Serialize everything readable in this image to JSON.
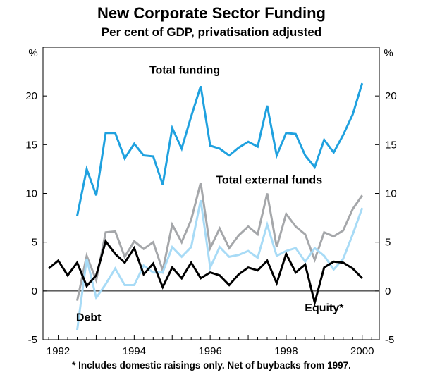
{
  "title": "New Corporate Sector Funding",
  "subtitle": "Per cent of GDP, privatisation adjusted",
  "footnote": "* Includes domestic raisings only. Net of buybacks from 1997.",
  "chart_data": {
    "type": "line",
    "title": "New Corporate Sector Funding",
    "subtitle": "Per cent of GDP, privatisation adjusted",
    "ylabel_left": "%",
    "ylabel_right": "%",
    "ylim": [
      -5,
      25
    ],
    "yticks": [
      -5,
      0,
      5,
      10,
      15,
      20
    ],
    "xlim": [
      1991.6,
      2000.45
    ],
    "xticks": [
      1992,
      1994,
      1996,
      1998,
      2000
    ],
    "xtick_labels": [
      "1992",
      "1994",
      "1996",
      "1998",
      "2000"
    ],
    "grid": false,
    "series": [
      {
        "name": "Total funding",
        "color": "#1fa1df",
        "width": 3,
        "x": [
          1992.5,
          1992.75,
          1993.0,
          1993.25,
          1993.5,
          1993.75,
          1994.0,
          1994.25,
          1994.5,
          1994.75,
          1995.0,
          1995.25,
          1995.5,
          1995.75,
          1996.0,
          1996.25,
          1996.5,
          1996.75,
          1997.0,
          1997.25,
          1997.5,
          1997.75,
          1998.0,
          1998.25,
          1998.5,
          1998.75,
          1999.0,
          1999.25,
          1999.5,
          1999.75,
          2000.0,
          2000.25
        ],
        "values": [
          7.7,
          12.5,
          9.8,
          16.2,
          16.2,
          13.6,
          15.1,
          13.9,
          13.8,
          10.9,
          16.7,
          14.6,
          17.9,
          21.0,
          14.9,
          14.6,
          13.9,
          14.7,
          15.3,
          14.8,
          19.0,
          13.9,
          16.2,
          16.1,
          13.9,
          12.7,
          15.5,
          14.2,
          16.0,
          18.1,
          21.3,
          null
        ]
      },
      {
        "name": "Total external funds",
        "color": "#a5a7aa",
        "width": 3,
        "x": [
          1992.5,
          1992.75,
          1993.0,
          1993.25,
          1993.5,
          1993.75,
          1994.0,
          1994.25,
          1994.5,
          1994.75,
          1995.0,
          1995.25,
          1995.5,
          1995.75,
          1996.0,
          1996.25,
          1996.5,
          1996.75,
          1997.0,
          1997.25,
          1997.5,
          1997.75,
          1998.0,
          1998.25,
          1998.5,
          1998.75,
          1999.0,
          1999.25,
          1999.5,
          1999.75,
          2000.0
        ],
        "values": [
          -1.0,
          3.6,
          1.1,
          6.0,
          6.1,
          3.5,
          5.1,
          4.3,
          5.0,
          2.1,
          6.8,
          5.0,
          7.3,
          11.1,
          4.4,
          6.4,
          4.4,
          5.7,
          6.6,
          5.8,
          10.0,
          4.5,
          7.9,
          6.6,
          5.8,
          3.2,
          6.0,
          5.6,
          6.2,
          8.4,
          9.8
        ]
      },
      {
        "name": "Debt",
        "color": "#a8dbf6",
        "width": 3,
        "x": [
          1992.5,
          1992.75,
          1993.0,
          1993.25,
          1993.5,
          1993.75,
          1994.0,
          1994.25,
          1994.5,
          1994.75,
          1995.0,
          1995.25,
          1995.5,
          1995.75,
          1996.0,
          1996.25,
          1996.5,
          1996.75,
          1997.0,
          1997.25,
          1997.5,
          1997.75,
          1998.0,
          1998.25,
          1998.5,
          1998.75,
          1999.0,
          1999.25,
          1999.5,
          1999.75,
          2000.0
        ],
        "values": [
          -4.0,
          3.3,
          -0.7,
          0.7,
          2.3,
          0.6,
          0.6,
          2.6,
          1.9,
          1.9,
          4.5,
          3.5,
          4.5,
          9.3,
          2.4,
          4.5,
          3.5,
          3.7,
          4.1,
          3.4,
          6.8,
          3.6,
          4.1,
          4.4,
          3.0,
          4.4,
          3.6,
          2.2,
          3.3,
          5.8,
          8.5
        ]
      },
      {
        "name": "Equity*",
        "color": "#000000",
        "width": 3,
        "x": [
          1991.75,
          1992.0,
          1992.25,
          1992.5,
          1992.75,
          1993.0,
          1993.25,
          1993.5,
          1993.75,
          1994.0,
          1994.25,
          1994.5,
          1994.75,
          1995.0,
          1995.25,
          1995.5,
          1995.75,
          1996.0,
          1996.25,
          1996.5,
          1996.75,
          1997.0,
          1997.25,
          1997.5,
          1997.75,
          1998.0,
          1998.25,
          1998.5,
          1998.75,
          1999.0,
          1999.25,
          1999.5,
          1999.75,
          2000.0
        ],
        "values": [
          2.3,
          3.1,
          1.6,
          2.9,
          0.5,
          1.6,
          5.1,
          3.8,
          2.9,
          4.4,
          1.7,
          2.8,
          0.4,
          2.4,
          1.3,
          2.9,
          1.3,
          1.9,
          1.6,
          0.6,
          1.7,
          2.4,
          2.1,
          3.1,
          0.8,
          3.8,
          1.9,
          2.7,
          -1.2,
          2.4,
          3.0,
          2.9,
          2.3,
          1.3
        ]
      }
    ],
    "annotations": [
      {
        "text": "Total funding",
        "series": "Total funding",
        "at": [
          1995.33,
          22.3
        ]
      },
      {
        "text": "Total external funds",
        "series": "Total external funds",
        "at": [
          1997.55,
          11.0
        ]
      },
      {
        "text": "Debt",
        "series": "Debt",
        "at": [
          1992.8,
          -3.1
        ]
      },
      {
        "text": "Equity*",
        "series": "Equity*",
        "at": [
          1999.0,
          -2.1
        ]
      }
    ]
  }
}
